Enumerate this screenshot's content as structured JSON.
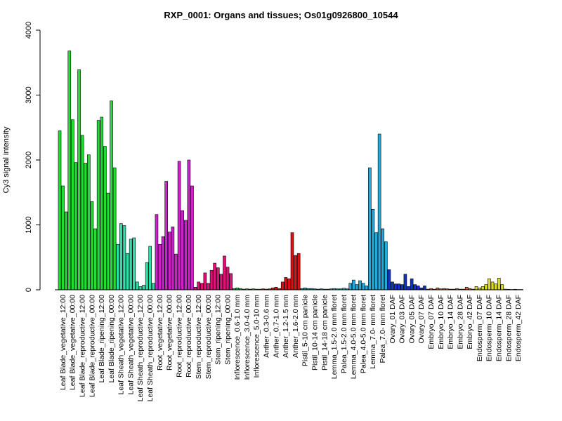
{
  "chart_data": {
    "type": "bar",
    "title": "RXP_0001: Organs and tissues; Os01g0926800_10544",
    "xlabel": "",
    "ylabel": "Cy3 signal intensity",
    "ylim": [
      0,
      4000
    ],
    "yticks": [
      0,
      1000,
      2000,
      3000,
      4000
    ],
    "grid": false,
    "legend": "none",
    "categories": [
      "Leaf Blade_vegetative_12:00",
      "Leaf Blade_vegetative_00:00",
      "Leaf Blade_reproductive_12:00",
      "Leaf Blade_reproductive_00:00",
      "Leaf Blade_ripening_12:00",
      "Leaf Blade_ripening_00:00",
      "Leaf Sheath_vegetative_12:00",
      "Leaf Sheath_vegetative_00:00",
      "Leaf Sheath_reproductive_12:00",
      "Leaf Sheath_reproductive_00:00",
      "Root_vegetative_12:00",
      "Root_vegetative_00:00",
      "Root_reproductive_12:00",
      "Root_reproductive_00:00",
      "Stem_reproductive_12:00",
      "Stem_reproductive_00:00",
      "Stem_ripening_12:00",
      "Stem_ripening_00:00",
      "Inflorescence_0.6-1.0 mm",
      "Inflorescence_3.0-4.0 mm",
      "Inflorescence_5.0-10 mm",
      "Anther_0.3-0.6 mm",
      "Anther_0.7-1.0 mm",
      "Anther_1.2-1.5 mm",
      "Anther_1.6-2.0 mm",
      "Pistil_5-10 cm panicle",
      "Pistil_10-14 cm panicle",
      "Pistil_14-18 cm panicle",
      "Lemma_1.5-2.0 mm floret",
      "Palea_1.5-2.0 mm floret",
      "Lemma_4.0-5.0 mm floret",
      "Palea_4.0-5.0 mm floret",
      "Lemma_7.0- mm floret",
      "Palea_7.0- mm floret",
      "Ovary_01 DAF",
      "Ovary_03 DAF",
      "Ovary_05 DAF",
      "Ovary_07 DAF",
      "Embryo_07 DAF",
      "Embryo_10 DAF",
      "Embryo_14 DAF",
      "Embryo_28 DAF",
      "Embryo_42 DAF",
      "Endosperm_07 DAF",
      "Endosperm_10 DAF",
      "Endosperm_14 DAF",
      "Endosperm_28 DAF",
      "Endosperm_42 DAF"
    ],
    "colors": [
      "#22dd33",
      "#22dd33",
      "#22dd33",
      "#22dd33",
      "#22dd33",
      "#22dd33",
      "#33ddaa",
      "#33ddaa",
      "#33ddaa",
      "#33ddaa",
      "#cc22cc",
      "#cc22cc",
      "#cc22cc",
      "#cc22cc",
      "#dd1177",
      "#dd1177",
      "#dd1177",
      "#dd1177",
      "#22bb44",
      "#22bb44",
      "#22bb44",
      "#dd1111",
      "#dd1111",
      "#dd1111",
      "#dd1111",
      "#0099aa",
      "#0099aa",
      "#0099aa",
      "#22aadd",
      "#22aadd",
      "#22aadd",
      "#22aadd",
      "#22aadd",
      "#22aadd",
      "#1133cc",
      "#1133cc",
      "#1133cc",
      "#1133cc",
      "#dd6622",
      "#dd6622",
      "#dd6622",
      "#dd6622",
      "#dd6622",
      "#dddd22",
      "#dddd22",
      "#dddd22",
      "#dddd22",
      "#dddd22"
    ],
    "replicates": [
      [
        2450,
        1600,
        1200
      ],
      [
        3680,
        2620,
        1960
      ],
      [
        3390,
        2380,
        1950
      ],
      [
        2080,
        1360,
        940
      ],
      [
        2610,
        2660,
        2210
      ],
      [
        1490,
        2910,
        1880
      ],
      [
        700,
        1020,
        990
      ],
      [
        560,
        780,
        800
      ],
      [
        120,
        50,
        70
      ],
      [
        420,
        670,
        100
      ],
      [
        1160,
        700,
        820
      ],
      [
        1670,
        890,
        970
      ],
      [
        550,
        1980,
        1220
      ],
      [
        1070,
        2000,
        1600
      ],
      [
        40,
        120,
        100
      ],
      [
        260,
        100,
        300
      ],
      [
        410,
        340,
        240
      ],
      [
        520,
        350,
        250
      ],
      [
        20,
        30,
        20
      ],
      [
        10,
        15,
        10
      ],
      [
        15,
        10,
        10
      ],
      [
        15,
        10,
        15
      ],
      [
        30,
        40,
        20
      ],
      [
        120,
        190,
        170
      ],
      [
        880,
        530,
        560
      ],
      [
        20,
        30,
        20
      ],
      [
        20,
        15,
        10
      ],
      [
        15,
        10,
        10
      ],
      [
        15,
        20,
        15
      ],
      [
        15,
        25,
        15
      ],
      [
        100,
        150,
        80
      ],
      [
        140,
        100,
        60
      ],
      [
        1880,
        1240,
        880
      ],
      [
        2400,
        940,
        740
      ],
      [
        310,
        120,
        90
      ],
      [
        90,
        80,
        240
      ],
      [
        50,
        170,
        80
      ],
      [
        60,
        30,
        60
      ],
      [
        10,
        20,
        10
      ],
      [
        30,
        15,
        20
      ],
      [
        15,
        10,
        10
      ],
      [
        20,
        10,
        10
      ],
      [
        40,
        20,
        10
      ],
      [
        50,
        30,
        50
      ],
      [
        80,
        170,
        120
      ],
      [
        90,
        180,
        80
      ],
      [
        10,
        8,
        5
      ],
      [
        8,
        5,
        5
      ]
    ]
  }
}
